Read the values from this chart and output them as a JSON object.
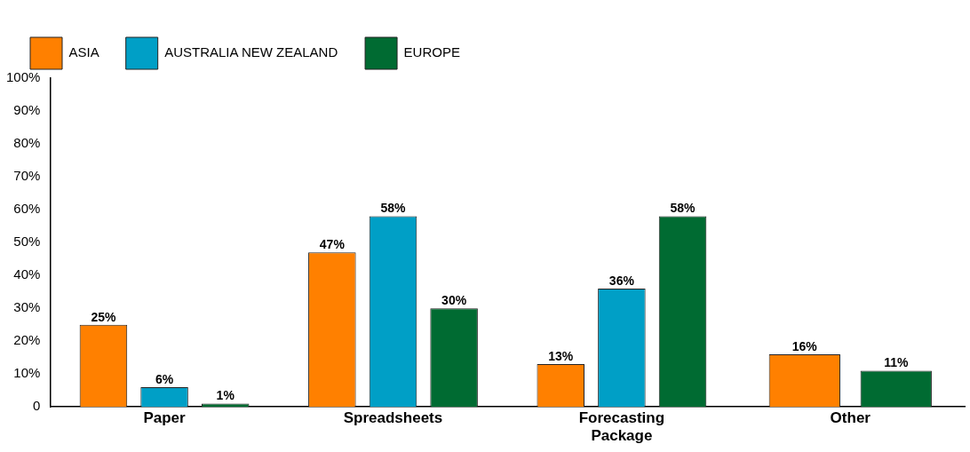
{
  "chart_data": {
    "type": "bar",
    "categories": [
      "Paper",
      "Spreadsheets",
      "Forecasting Package",
      "Other"
    ],
    "series": [
      {
        "name": "ASIA",
        "color": "#ff8000",
        "values": [
          25,
          47,
          13,
          16
        ],
        "value_labels": [
          "25%",
          "47%",
          "13%",
          "16%"
        ]
      },
      {
        "name": "AUSTRALIA NEW ZEALAND",
        "color": "#009fc6",
        "values": [
          6,
          58,
          36,
          null
        ],
        "value_labels": [
          "6%",
          "58%",
          "36%",
          null
        ]
      },
      {
        "name": "EUROPE",
        "color": "#006b32",
        "values": [
          1,
          30,
          58,
          11
        ],
        "value_labels": [
          "1%",
          "30%",
          "58%",
          "11%"
        ]
      }
    ],
    "ylim": [
      0,
      100
    ],
    "yticks": [
      {
        "value": 0,
        "label": "0"
      },
      {
        "value": 10,
        "label": "10%"
      },
      {
        "value": 20,
        "label": "20%"
      },
      {
        "value": 30,
        "label": "30%"
      },
      {
        "value": 40,
        "label": "40%"
      },
      {
        "value": 50,
        "label": "50%"
      },
      {
        "value": 60,
        "label": "60%"
      },
      {
        "value": 70,
        "label": "70%"
      },
      {
        "value": 80,
        "label": "80%"
      },
      {
        "value": 90,
        "label": "90%"
      },
      {
        "value": 100,
        "label": "100%"
      }
    ],
    "grid": false,
    "legend": "top left"
  }
}
